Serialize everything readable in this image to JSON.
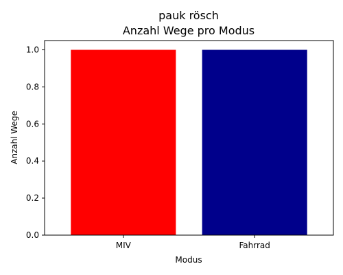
{
  "chart_data": {
    "type": "bar",
    "title": "pauk rösch",
    "subtitle": "Anzahl Wege pro Modus",
    "xlabel": "Modus",
    "ylabel": "Anzahl Wege",
    "categories": [
      "MIV",
      "Fahrrad"
    ],
    "values": [
      1,
      1
    ],
    "bar_colors": [
      "#ff0000",
      "#00008b"
    ],
    "ylim": [
      0,
      1.05
    ],
    "yticks": [
      0.0,
      0.2,
      0.4,
      0.6,
      0.8,
      1.0
    ],
    "ytick_labels": [
      "0.0",
      "0.2",
      "0.4",
      "0.6",
      "0.8",
      "1.0"
    ],
    "grid": false,
    "legend": "none"
  }
}
